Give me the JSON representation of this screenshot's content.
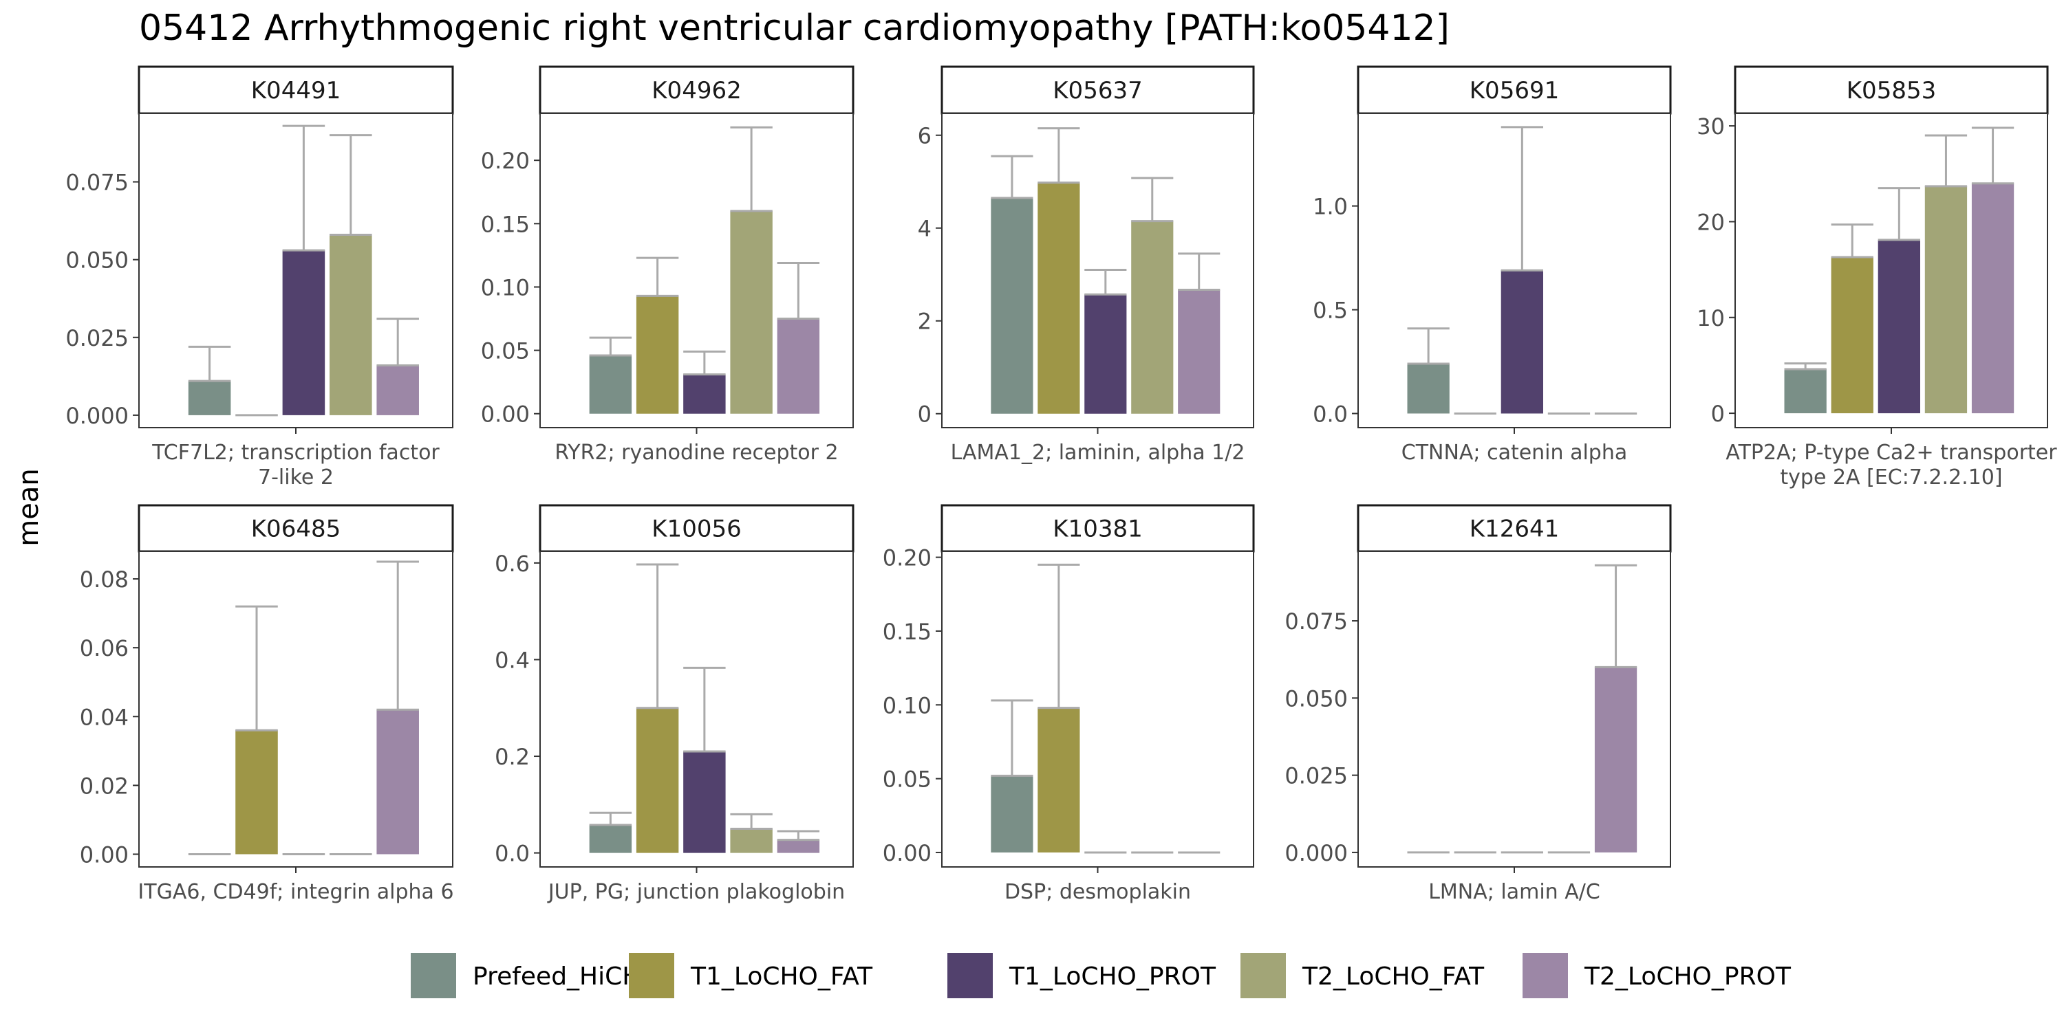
{
  "title": "05412 Arrhythmogenic right ventricular cardiomyopathy [PATH:ko05412]",
  "ylabel": "mean",
  "legend": {
    "position": "bottom",
    "entries": [
      {
        "name": "Prefeed_HiCHO",
        "color": "#7a8f87"
      },
      {
        "name": "T1_LoCHO_FAT",
        "color": "#9e9647"
      },
      {
        "name": "T1_LoCHO_PROT",
        "color": "#52416d"
      },
      {
        "name": "T2_LoCHO_FAT",
        "color": "#a2a577"
      },
      {
        "name": "T2_LoCHO_PROT",
        "color": "#9c87a6"
      }
    ]
  },
  "chart_data": {
    "type": "bar",
    "grid": false,
    "series_names": [
      "Prefeed_HiCHO",
      "T1_LoCHO_FAT",
      "T1_LoCHO_PROT",
      "T2_LoCHO_FAT",
      "T2_LoCHO_PROT"
    ],
    "panels": [
      {
        "strip": "K04491",
        "xlabel": [
          "TCF7L2; transcription factor",
          "7-like 2"
        ],
        "ylim": [
          -0.004,
          0.097
        ],
        "yticks": [
          0.0,
          0.025,
          0.05,
          0.075
        ],
        "ytick_labels": [
          "0.000",
          "0.025",
          "0.050",
          "0.075"
        ],
        "values": [
          0.011,
          0.0,
          0.053,
          0.058,
          0.016
        ],
        "errors": [
          0.022,
          0.0,
          0.093,
          0.09,
          0.031
        ]
      },
      {
        "strip": "K04962",
        "xlabel": [
          "RYR2; ryanodine receptor 2"
        ],
        "ylim": [
          -0.011,
          0.237
        ],
        "yticks": [
          0.0,
          0.05,
          0.1,
          0.15,
          0.2
        ],
        "ytick_labels": [
          "0.00",
          "0.05",
          "0.10",
          "0.15",
          "0.20"
        ],
        "values": [
          0.046,
          0.093,
          0.031,
          0.16,
          0.075
        ],
        "errors": [
          0.06,
          0.123,
          0.049,
          0.226,
          0.119
        ]
      },
      {
        "strip": "K05637",
        "xlabel": [
          "LAMA1_2; laminin, alpha 1/2"
        ],
        "ylim": [
          -0.3,
          6.47
        ],
        "yticks": [
          0,
          2,
          4,
          6
        ],
        "ytick_labels": [
          "0",
          "2",
          "4",
          "6"
        ],
        "values": [
          4.65,
          4.98,
          2.57,
          4.15,
          2.67
        ],
        "errors": [
          5.55,
          6.15,
          3.1,
          5.08,
          3.45
        ]
      },
      {
        "strip": "K05691",
        "xlabel": [
          "CTNNA; catenin alpha"
        ],
        "ylim": [
          -0.068,
          1.446
        ],
        "yticks": [
          0.0,
          0.5,
          1.0
        ],
        "ytick_labels": [
          "0.0",
          "0.5",
          "1.0"
        ],
        "values": [
          0.24,
          0.0,
          0.69,
          0.0,
          0.0
        ],
        "errors": [
          0.41,
          0.0,
          1.38,
          0.0,
          0.0
        ]
      },
      {
        "strip": "K05853",
        "xlabel": [
          "ATP2A; P-type Ca2+ transporter",
          "type 2A [EC:7.2.2.10]"
        ],
        "ylim": [
          -1.5,
          31.3
        ],
        "yticks": [
          0,
          10,
          20,
          30
        ],
        "ytick_labels": [
          "0",
          "10",
          "20",
          "30"
        ],
        "values": [
          4.6,
          16.3,
          18.1,
          23.7,
          24.0
        ],
        "errors": [
          5.2,
          19.7,
          23.5,
          29.0,
          29.8
        ]
      },
      {
        "strip": "K06485",
        "xlabel": [
          "ITGA6, CD49f; integrin alpha 6"
        ],
        "ylim": [
          -0.0037,
          0.088
        ],
        "yticks": [
          0.0,
          0.02,
          0.04,
          0.06,
          0.08
        ],
        "ytick_labels": [
          "0.00",
          "0.02",
          "0.04",
          "0.06",
          "0.08"
        ],
        "values": [
          0.0,
          0.036,
          0.0,
          0.0,
          0.042
        ],
        "errors": [
          0.0,
          0.072,
          0.0,
          0.0,
          0.085
        ]
      },
      {
        "strip": "K10056",
        "xlabel": [
          "JUP, PG; junction plakoglobin"
        ],
        "ylim": [
          -0.029,
          0.624
        ],
        "yticks": [
          0.0,
          0.2,
          0.4,
          0.6
        ],
        "ytick_labels": [
          "0.0",
          "0.2",
          "0.4",
          "0.6"
        ],
        "values": [
          0.058,
          0.3,
          0.21,
          0.05,
          0.027
        ],
        "errors": [
          0.083,
          0.597,
          0.383,
          0.08,
          0.045
        ]
      },
      {
        "strip": "K10381",
        "xlabel": [
          "DSP; desmoplakin"
        ],
        "ylim": [
          -0.0098,
          0.204
        ],
        "yticks": [
          0.0,
          0.05,
          0.1,
          0.15,
          0.2
        ],
        "ytick_labels": [
          "0.00",
          "0.05",
          "0.10",
          "0.15",
          "0.20"
        ],
        "values": [
          0.052,
          0.098,
          0.0,
          0.0,
          0.0
        ],
        "errors": [
          0.103,
          0.195,
          0.0,
          0.0,
          0.0
        ]
      },
      {
        "strip": "K12641",
        "xlabel": [
          "LMNA; lamin A/C"
        ],
        "ylim": [
          -0.0047,
          0.0975
        ],
        "yticks": [
          0.0,
          0.025,
          0.05,
          0.075
        ],
        "ytick_labels": [
          "0.000",
          "0.025",
          "0.050",
          "0.075"
        ],
        "values": [
          0.0,
          0.0,
          0.0,
          0.0,
          0.06
        ],
        "errors": [
          0.0,
          0.0,
          0.0,
          0.0,
          0.093
        ]
      }
    ]
  }
}
